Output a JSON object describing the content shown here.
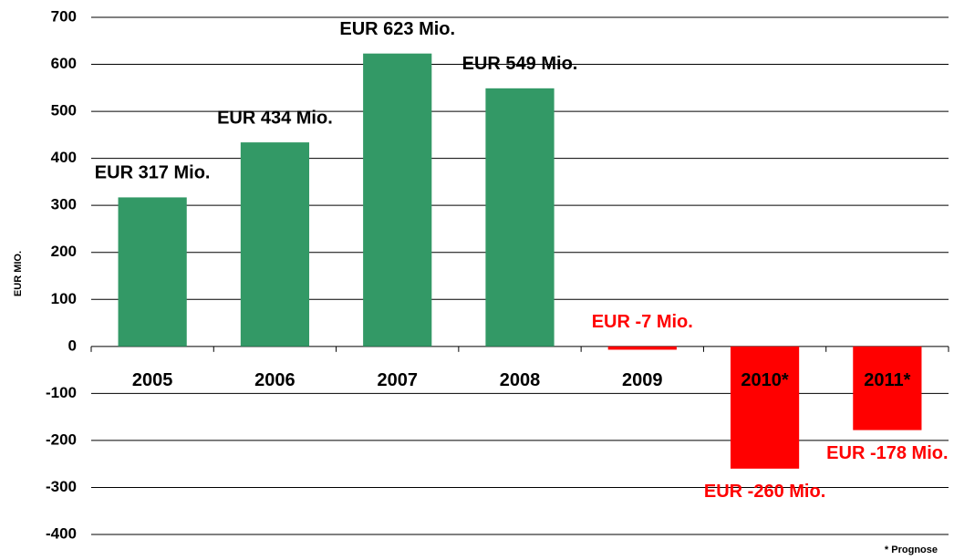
{
  "chart_data": {
    "type": "bar",
    "y_label": "EUR MIO.",
    "footnote": "* Prognose",
    "categories": [
      "2005",
      "2006",
      "2007",
      "2008",
      "2009",
      "2010*",
      "2011*"
    ],
    "values": [
      317,
      434,
      623,
      549,
      -7,
      -260,
      -178
    ],
    "value_labels": [
      "EUR 317 Mio.",
      "EUR 434 Mio.",
      "EUR 623 Mio.",
      "EUR 549 Mio.",
      "EUR -7 Mio.",
      "EUR -260 Mio.",
      "EUR -178 Mio."
    ],
    "colors": [
      "#339966",
      "#339966",
      "#339966",
      "#339966",
      "#ff0000",
      "#ff0000",
      "#ff0000"
    ],
    "label_colors": [
      "#000000",
      "#000000",
      "#000000",
      "#000000",
      "#ff0000",
      "#ff0000",
      "#ff0000"
    ],
    "ylim": [
      -400,
      700
    ],
    "yticks": [
      -400,
      -300,
      -200,
      -100,
      0,
      100,
      200,
      300,
      400,
      500,
      600,
      700
    ],
    "grid": true
  }
}
